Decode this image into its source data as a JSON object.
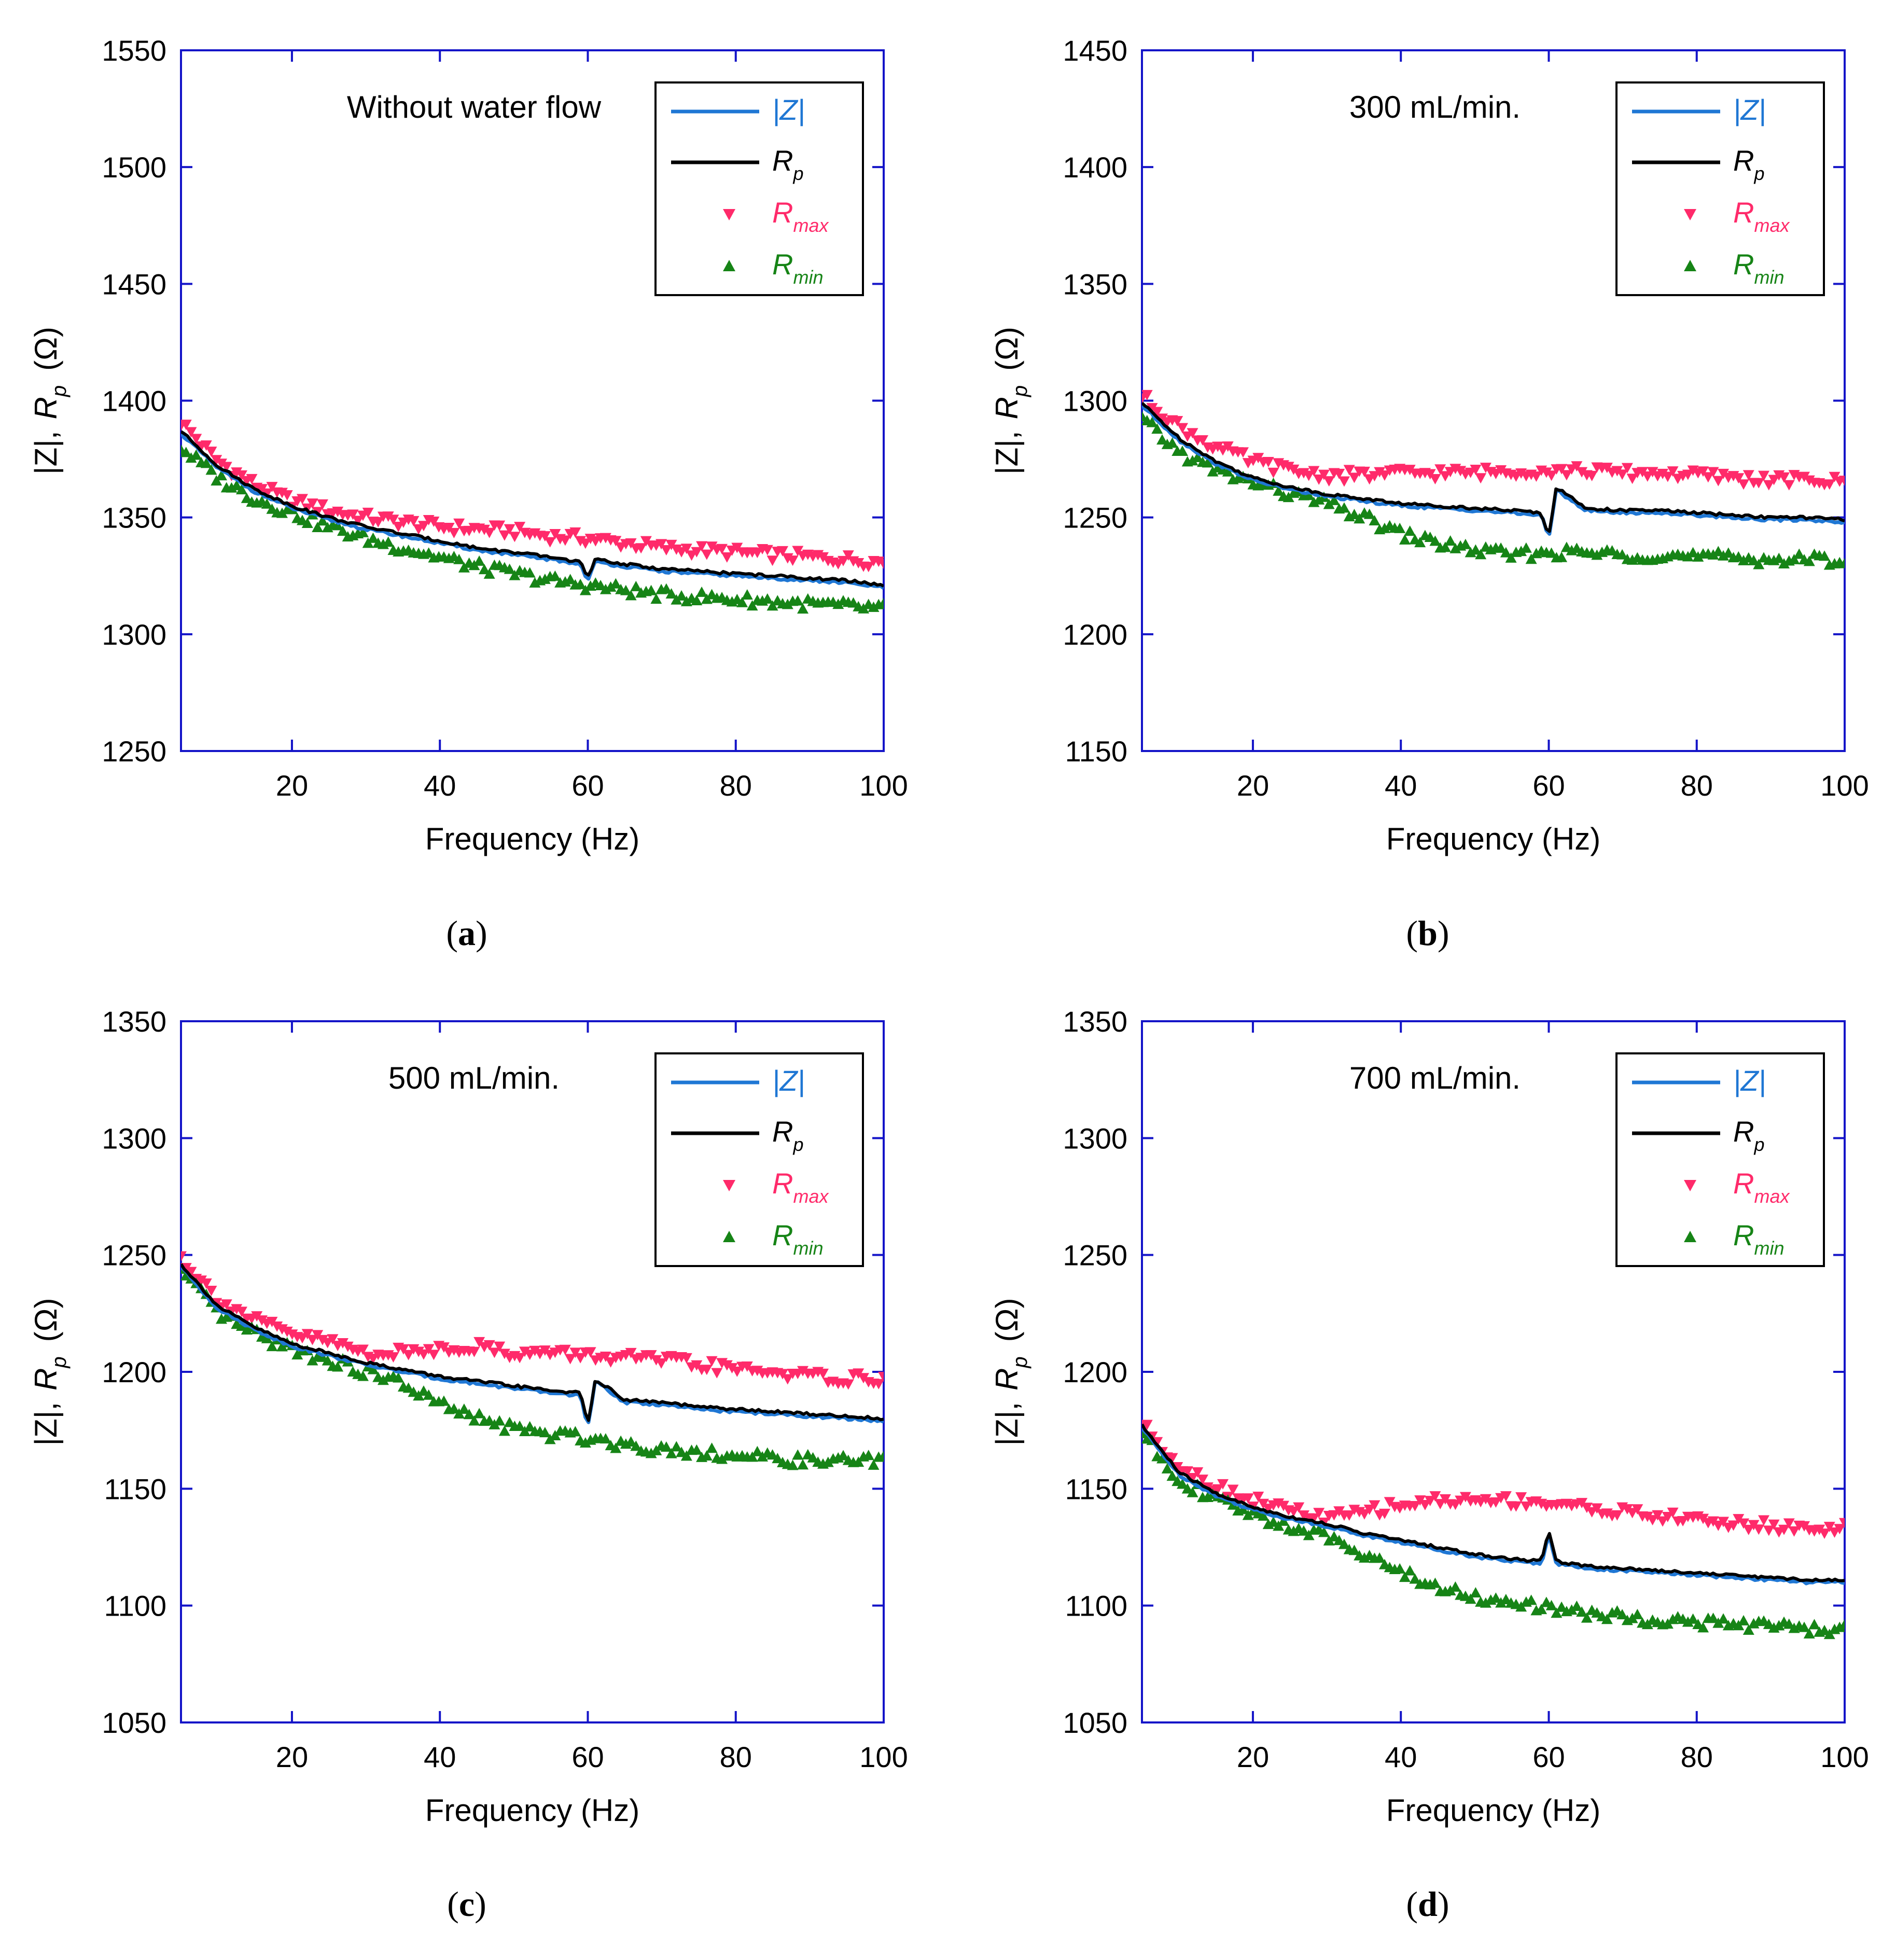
{
  "colors": {
    "axis": "#1414c8",
    "z": "#1f77d4",
    "rp": "#000000",
    "rmax": "#ff2a6a",
    "rmin": "#168416"
  },
  "chart_data": [
    {
      "id": "a",
      "type": "line",
      "caption": "a",
      "annotation": "Without water flow",
      "xlabel": "Frequency (Hz)",
      "ylabel_parts": [
        "|Z|,",
        "R",
        "p",
        "(Ω)"
      ],
      "xlim": [
        5,
        100
      ],
      "ylim": [
        1250,
        1550
      ],
      "xticks": [
        20,
        40,
        60,
        80,
        100
      ],
      "yticks": [
        1250,
        1300,
        1350,
        1400,
        1450,
        1500,
        1550
      ],
      "legend": {
        "position": "top-right",
        "entries": [
          {
            "key": "z",
            "label": "|Z|",
            "sub": ""
          },
          {
            "key": "rp",
            "label": "R",
            "sub": "p"
          },
          {
            "key": "rmax",
            "label": "R",
            "sub": "max"
          },
          {
            "key": "rmin",
            "label": "R",
            "sub": "min"
          }
        ]
      },
      "series": [
        {
          "name": "|Z|",
          "x": [
            5,
            10,
            15,
            20,
            25,
            30,
            35,
            40,
            45,
            50,
            55,
            59,
            60,
            61,
            65,
            70,
            75,
            80,
            85,
            90,
            95,
            100
          ],
          "values": [
            1386,
            1371,
            1361,
            1354,
            1349,
            1345,
            1342,
            1339,
            1336,
            1334,
            1332,
            1330,
            1323,
            1331,
            1329,
            1327,
            1326,
            1325,
            1324,
            1323,
            1322,
            1320
          ]
        },
        {
          "name": "R_p",
          "x": [
            5,
            10,
            15,
            20,
            25,
            30,
            35,
            40,
            45,
            50,
            55,
            59,
            60,
            61,
            65,
            70,
            75,
            80,
            85,
            90,
            95,
            100
          ],
          "values": [
            1387,
            1372,
            1362,
            1355,
            1350,
            1346,
            1343,
            1340,
            1337,
            1335,
            1333,
            1331,
            1324,
            1332,
            1330,
            1328,
            1327,
            1326,
            1325,
            1324,
            1323,
            1321
          ]
        },
        {
          "name": "R_max",
          "x": [
            5,
            10,
            15,
            20,
            25,
            30,
            35,
            40,
            45,
            50,
            55,
            60,
            65,
            70,
            75,
            80,
            85,
            90,
            95,
            100
          ],
          "values": [
            1391,
            1374,
            1364,
            1357,
            1353,
            1350,
            1348,
            1346,
            1345,
            1344,
            1342,
            1341,
            1339,
            1337,
            1336,
            1335,
            1334,
            1333,
            1332,
            1331
          ]
        },
        {
          "name": "R_min",
          "x": [
            5,
            10,
            15,
            20,
            25,
            30,
            35,
            40,
            45,
            50,
            55,
            60,
            65,
            70,
            75,
            80,
            85,
            90,
            95,
            100
          ],
          "values": [
            1380,
            1367,
            1358,
            1352,
            1346,
            1341,
            1337,
            1333,
            1329,
            1326,
            1323,
            1321,
            1319,
            1317,
            1316,
            1315,
            1314,
            1313,
            1312,
            1311
          ]
        }
      ]
    },
    {
      "id": "b",
      "type": "line",
      "caption": "b",
      "annotation": "300 mL/min.",
      "xlabel": "Frequency (Hz)",
      "ylabel_parts": [
        "|Z|,",
        "R",
        "p",
        "(Ω)"
      ],
      "xlim": [
        5,
        100
      ],
      "ylim": [
        1150,
        1450
      ],
      "xticks": [
        20,
        40,
        60,
        80,
        100
      ],
      "yticks": [
        1150,
        1200,
        1250,
        1300,
        1350,
        1400,
        1450
      ],
      "legend": {
        "position": "top-right",
        "entries": [
          {
            "key": "z",
            "label": "|Z|",
            "sub": ""
          },
          {
            "key": "rp",
            "label": "R",
            "sub": "p"
          },
          {
            "key": "rmax",
            "label": "R",
            "sub": "max"
          },
          {
            "key": "rmin",
            "label": "R",
            "sub": "min"
          }
        ]
      },
      "series": [
        {
          "name": "|Z|",
          "x": [
            5,
            10,
            15,
            20,
            25,
            30,
            35,
            40,
            45,
            50,
            55,
            59,
            60,
            61,
            65,
            70,
            75,
            80,
            85,
            90,
            95,
            100
          ],
          "values": [
            1298,
            1283,
            1273,
            1266,
            1262,
            1259,
            1257,
            1255,
            1254,
            1253,
            1252,
            1251,
            1241,
            1262,
            1253,
            1252,
            1252,
            1251,
            1250,
            1249,
            1249,
            1248
          ]
        },
        {
          "name": "R_p",
          "x": [
            5,
            10,
            15,
            20,
            25,
            30,
            35,
            40,
            45,
            50,
            55,
            59,
            60,
            61,
            65,
            70,
            75,
            80,
            85,
            90,
            95,
            100
          ],
          "values": [
            1299,
            1284,
            1274,
            1267,
            1263,
            1260,
            1258,
            1256,
            1255,
            1254,
            1253,
            1252,
            1242,
            1263,
            1254,
            1253,
            1253,
            1252,
            1251,
            1250,
            1250,
            1249
          ]
        },
        {
          "name": "R_max",
          "x": [
            5,
            10,
            15,
            20,
            25,
            30,
            35,
            40,
            45,
            50,
            55,
            60,
            65,
            70,
            75,
            80,
            85,
            90,
            95,
            100
          ],
          "values": [
            1302,
            1289,
            1280,
            1274,
            1270,
            1268,
            1268,
            1269,
            1269,
            1269,
            1270,
            1270,
            1270,
            1269,
            1269,
            1268,
            1267,
            1266,
            1266,
            1265
          ]
        },
        {
          "name": "R_min",
          "x": [
            5,
            10,
            15,
            20,
            25,
            30,
            35,
            40,
            45,
            50,
            55,
            60,
            65,
            70,
            75,
            80,
            85,
            90,
            95,
            100
          ],
          "values": [
            1292,
            1278,
            1270,
            1265,
            1260,
            1256,
            1250,
            1243,
            1239,
            1236,
            1234,
            1235,
            1235,
            1234,
            1234,
            1233,
            1233,
            1232,
            1232,
            1232
          ]
        }
      ]
    },
    {
      "id": "c",
      "type": "line",
      "caption": "c",
      "annotation": "500 mL/min.",
      "xlabel": "Frequency (Hz)",
      "ylabel_parts": [
        "|Z|,",
        "R",
        "p",
        "(Ω)"
      ],
      "xlim": [
        5,
        100
      ],
      "ylim": [
        1050,
        1350
      ],
      "xticks": [
        20,
        40,
        60,
        80,
        100
      ],
      "yticks": [
        1050,
        1100,
        1150,
        1200,
        1250,
        1300,
        1350
      ],
      "legend": {
        "position": "top-right",
        "entries": [
          {
            "key": "z",
            "label": "|Z|",
            "sub": ""
          },
          {
            "key": "rp",
            "label": "R",
            "sub": "p"
          },
          {
            "key": "rmax",
            "label": "R",
            "sub": "max"
          },
          {
            "key": "rmin",
            "label": "R",
            "sub": "min"
          }
        ]
      },
      "series": [
        {
          "name": "|Z|",
          "x": [
            5,
            10,
            15,
            20,
            25,
            30,
            35,
            40,
            45,
            50,
            55,
            59,
            60,
            61,
            65,
            70,
            75,
            80,
            85,
            90,
            95,
            100
          ],
          "values": [
            1245,
            1227,
            1218,
            1211,
            1207,
            1203,
            1200,
            1197,
            1195,
            1193,
            1191,
            1190,
            1176,
            1196,
            1187,
            1186,
            1184,
            1183,
            1182,
            1181,
            1180,
            1179
          ]
        },
        {
          "name": "R_p",
          "x": [
            5,
            10,
            15,
            20,
            25,
            30,
            35,
            40,
            45,
            50,
            55,
            59,
            60,
            61,
            65,
            70,
            75,
            80,
            85,
            90,
            95,
            100
          ],
          "values": [
            1246,
            1228,
            1219,
            1212,
            1208,
            1204,
            1201,
            1198,
            1196,
            1194,
            1192,
            1191,
            1177,
            1197,
            1188,
            1187,
            1185,
            1184,
            1183,
            1182,
            1181,
            1180
          ]
        },
        {
          "name": "R_max",
          "x": [
            5,
            10,
            15,
            20,
            25,
            30,
            35,
            40,
            45,
            50,
            55,
            60,
            65,
            70,
            75,
            80,
            85,
            90,
            95,
            100
          ],
          "values": [
            1249,
            1231,
            1222,
            1216,
            1213,
            1208,
            1208,
            1210,
            1211,
            1208,
            1208,
            1207,
            1206,
            1205,
            1203,
            1201,
            1200,
            1198,
            1197,
            1197
          ]
        },
        {
          "name": "R_min",
          "x": [
            5,
            10,
            15,
            20,
            25,
            30,
            35,
            40,
            45,
            50,
            55,
            60,
            65,
            70,
            75,
            80,
            85,
            90,
            95,
            100
          ],
          "values": [
            1243,
            1225,
            1216,
            1210,
            1205,
            1200,
            1195,
            1186,
            1180,
            1176,
            1173,
            1172,
            1169,
            1167,
            1166,
            1164,
            1163,
            1162,
            1162,
            1162
          ]
        }
      ]
    },
    {
      "id": "d",
      "type": "line",
      "caption": "d",
      "annotation": "700 mL/min.",
      "xlabel": "Frequency (Hz)",
      "ylabel_parts": [
        "|Z|,",
        "R",
        "p",
        "(Ω)"
      ],
      "xlim": [
        5,
        100
      ],
      "ylim": [
        1050,
        1350
      ],
      "xticks": [
        20,
        40,
        60,
        80,
        100
      ],
      "yticks": [
        1050,
        1100,
        1150,
        1200,
        1250,
        1300,
        1350
      ],
      "legend": {
        "position": "top-right",
        "entries": [
          {
            "key": "z",
            "label": "|Z|",
            "sub": ""
          },
          {
            "key": "rp",
            "label": "R",
            "sub": "p"
          },
          {
            "key": "rmax",
            "label": "R",
            "sub": "max"
          },
          {
            "key": "rmin",
            "label": "R",
            "sub": "min"
          }
        ]
      },
      "series": [
        {
          "name": "|Z|",
          "x": [
            5,
            10,
            15,
            20,
            25,
            30,
            35,
            40,
            45,
            50,
            55,
            59,
            60,
            61,
            65,
            70,
            75,
            80,
            85,
            90,
            95,
            100
          ],
          "values": [
            1176,
            1156,
            1147,
            1141,
            1137,
            1134,
            1130,
            1127,
            1124,
            1121,
            1119,
            1118,
            1131,
            1118,
            1116,
            1115,
            1114,
            1113,
            1112,
            1111,
            1110,
            1110
          ]
        },
        {
          "name": "R_p",
          "x": [
            5,
            10,
            15,
            20,
            25,
            30,
            35,
            40,
            45,
            50,
            55,
            59,
            60,
            61,
            65,
            70,
            75,
            80,
            85,
            90,
            95,
            100
          ],
          "values": [
            1177,
            1157,
            1148,
            1142,
            1138,
            1135,
            1131,
            1128,
            1125,
            1122,
            1120,
            1119,
            1132,
            1119,
            1117,
            1116,
            1115,
            1114,
            1113,
            1112,
            1111,
            1111
          ]
        },
        {
          "name": "R_max",
          "x": [
            5,
            10,
            15,
            20,
            25,
            30,
            35,
            40,
            45,
            50,
            55,
            60,
            65,
            70,
            75,
            80,
            85,
            90,
            95,
            100
          ],
          "values": [
            1178,
            1160,
            1151,
            1145,
            1141,
            1137,
            1140,
            1143,
            1145,
            1145,
            1145,
            1144,
            1142,
            1140,
            1138,
            1137,
            1135,
            1134,
            1133,
            1133
          ]
        },
        {
          "name": "R_min",
          "x": [
            5,
            10,
            15,
            20,
            25,
            30,
            35,
            40,
            45,
            50,
            55,
            60,
            65,
            70,
            75,
            80,
            85,
            90,
            95,
            100
          ],
          "values": [
            1174,
            1154,
            1145,
            1139,
            1134,
            1129,
            1123,
            1114,
            1108,
            1104,
            1101,
            1099,
            1097,
            1095,
            1094,
            1093,
            1092,
            1091,
            1090,
            1090
          ]
        }
      ]
    }
  ]
}
